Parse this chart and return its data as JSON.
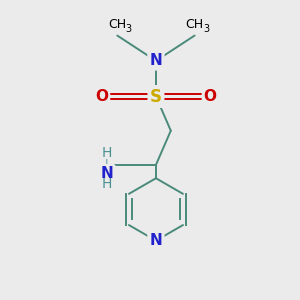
{
  "background_color": "#ebebeb",
  "atom_colors": {
    "C": "#000000",
    "N": "#2222cc",
    "O": "#cc0000",
    "S": "#ccaa00",
    "H": "#4a9090"
  },
  "bond_color": "#4a8a7a",
  "figsize": [
    3.0,
    3.0
  ],
  "dpi": 100,
  "line_width": 1.4,
  "font_size": 11
}
